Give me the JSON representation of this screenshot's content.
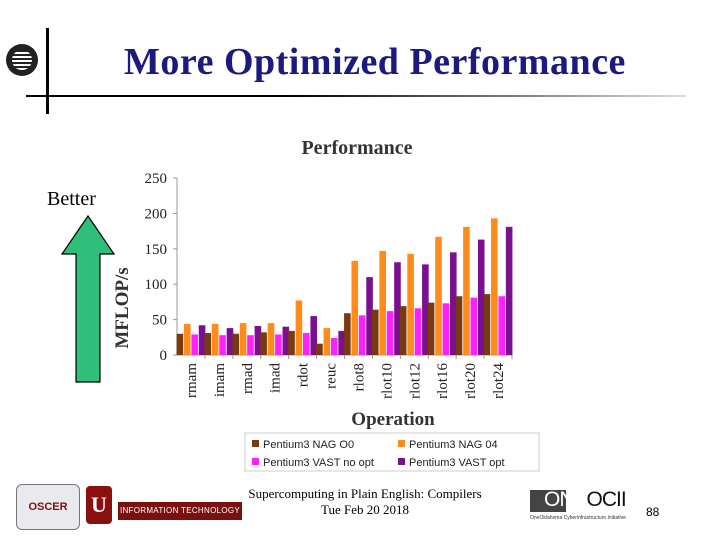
{
  "slide": {
    "title": "More Optimized Performance",
    "better_label": "Better",
    "footer_line1": "Supercomputing in Plain English: Compilers",
    "footer_line2": "Tue Feb 20 2018",
    "page_number": "88"
  },
  "logos": {
    "oscer": "OSCER",
    "ou": "U",
    "it": "INFORMATION TECHNOLOGY",
    "oneocii_prefix": "ONE",
    "oneocii_suffix": "OCII",
    "oneocii_tagline": "OneOklahoma Cyberinfrastructure Initiative"
  },
  "colors": {
    "title": "#1a1a80",
    "arrow": "#2fbf7a",
    "series": [
      "#7a3a10",
      "#ff8c1a",
      "#ff20ff",
      "#7a1090"
    ]
  },
  "chart_data": {
    "type": "bar",
    "title": "Performance",
    "xlabel": "Operation",
    "ylabel": "MFLOP/s",
    "ylim": [
      0,
      250
    ],
    "yticks": [
      0,
      50,
      100,
      150,
      200,
      250
    ],
    "grid": false,
    "legend_position": "bottom",
    "categories": [
      "rmam",
      "imam",
      "rmad",
      "imad",
      "rdot",
      "reuc",
      "rlot8",
      "rlot10",
      "rlot12",
      "rlot16",
      "rlot20",
      "rlot24"
    ],
    "series": [
      {
        "name": "Pentium3 NAG O0",
        "values": [
          30,
          31,
          30,
          32,
          34,
          16,
          59,
          64,
          69,
          74,
          83,
          86
        ]
      },
      {
        "name": "Pentium3 NAG 04",
        "values": [
          44,
          44,
          45,
          45,
          77,
          38,
          133,
          147,
          143,
          167,
          181,
          193
        ]
      },
      {
        "name": "Pentium3 VAST no opt",
        "values": [
          29,
          28,
          28,
          29,
          31,
          24,
          56,
          62,
          66,
          73,
          81,
          83
        ]
      },
      {
        "name": "Pentium3 VAST opt",
        "values": [
          42,
          38,
          41,
          40,
          55,
          34,
          110,
          131,
          128,
          145,
          163,
          181
        ]
      }
    ]
  }
}
